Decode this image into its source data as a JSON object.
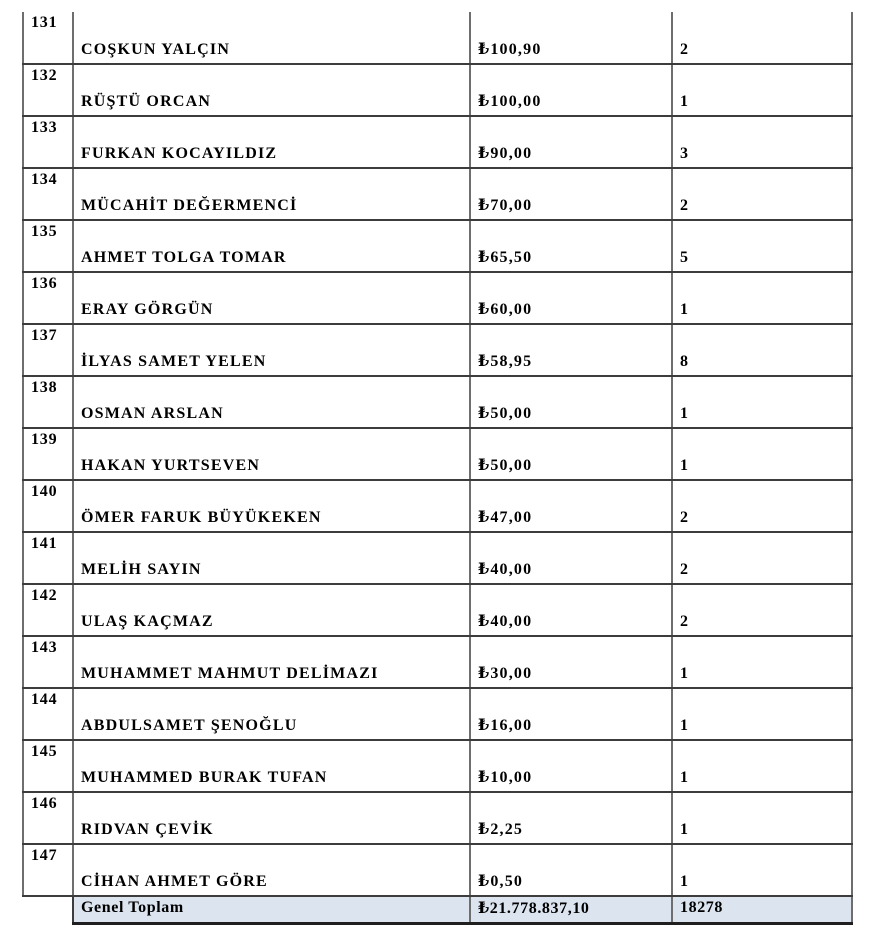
{
  "table": {
    "description": "Numbered list of people with amounts (Turkish lira) and counts, rows 131-147, with grand total",
    "currency_symbol": "₺",
    "rows": [
      {
        "no": "131",
        "name": "COŞKUN YALÇIN",
        "amount": "₺100,90",
        "count": "2"
      },
      {
        "no": "132",
        "name": "RÜŞTÜ ORCAN",
        "amount": "₺100,00",
        "count": "1"
      },
      {
        "no": "133",
        "name": "FURKAN KOCAYILDIZ",
        "amount": "₺90,00",
        "count": "3"
      },
      {
        "no": "134",
        "name": "MÜCAHİT DEĞERMENCİ",
        "amount": "₺70,00",
        "count": "2"
      },
      {
        "no": "135",
        "name": "AHMET TOLGA TOMAR",
        "amount": "₺65,50",
        "count": "5"
      },
      {
        "no": "136",
        "name": "ERAY GÖRGÜN",
        "amount": "₺60,00",
        "count": "1"
      },
      {
        "no": "137",
        "name": "İLYAS SAMET YELEN",
        "amount": "₺58,95",
        "count": "8"
      },
      {
        "no": "138",
        "name": "OSMAN ARSLAN",
        "amount": "₺50,00",
        "count": "1"
      },
      {
        "no": "139",
        "name": "HAKAN YURTSEVEN",
        "amount": "₺50,00",
        "count": "1"
      },
      {
        "no": "140",
        "name": "ÖMER FARUK BÜYÜKEKEN",
        "amount": "₺47,00",
        "count": "2"
      },
      {
        "no": "141",
        "name": "MELİH SAYIN",
        "amount": "₺40,00",
        "count": "2"
      },
      {
        "no": "142",
        "name": "ULAŞ KAÇMAZ",
        "amount": "₺40,00",
        "count": "2"
      },
      {
        "no": "143",
        "name": "MUHAMMET MAHMUT DELİMAZI",
        "amount": "₺30,00",
        "count": "1"
      },
      {
        "no": "144",
        "name": "ABDULSAMET ŞENOĞLU",
        "amount": "₺16,00",
        "count": "1"
      },
      {
        "no": "145",
        "name": "MUHAMMED BURAK TUFAN",
        "amount": "₺10,00",
        "count": "1"
      },
      {
        "no": "146",
        "name": "RIDVAN ÇEVİK",
        "amount": "₺2,25",
        "count": "1"
      },
      {
        "no": "147",
        "name": "CİHAN AHMET GÖRE",
        "amount": "₺0,50",
        "count": "1"
      }
    ],
    "total": {
      "label": "Genel Toplam",
      "amount": "₺21.778.837,10",
      "count": "18278"
    }
  },
  "colors": {
    "total_row_bg": "#dce4f0",
    "grid_vertical": "#6e6e6e",
    "grid_horizontal": "#3c3c3c",
    "bottom_border": "#1f1f1f",
    "text": "#000000",
    "page_bg": "#ffffff"
  }
}
